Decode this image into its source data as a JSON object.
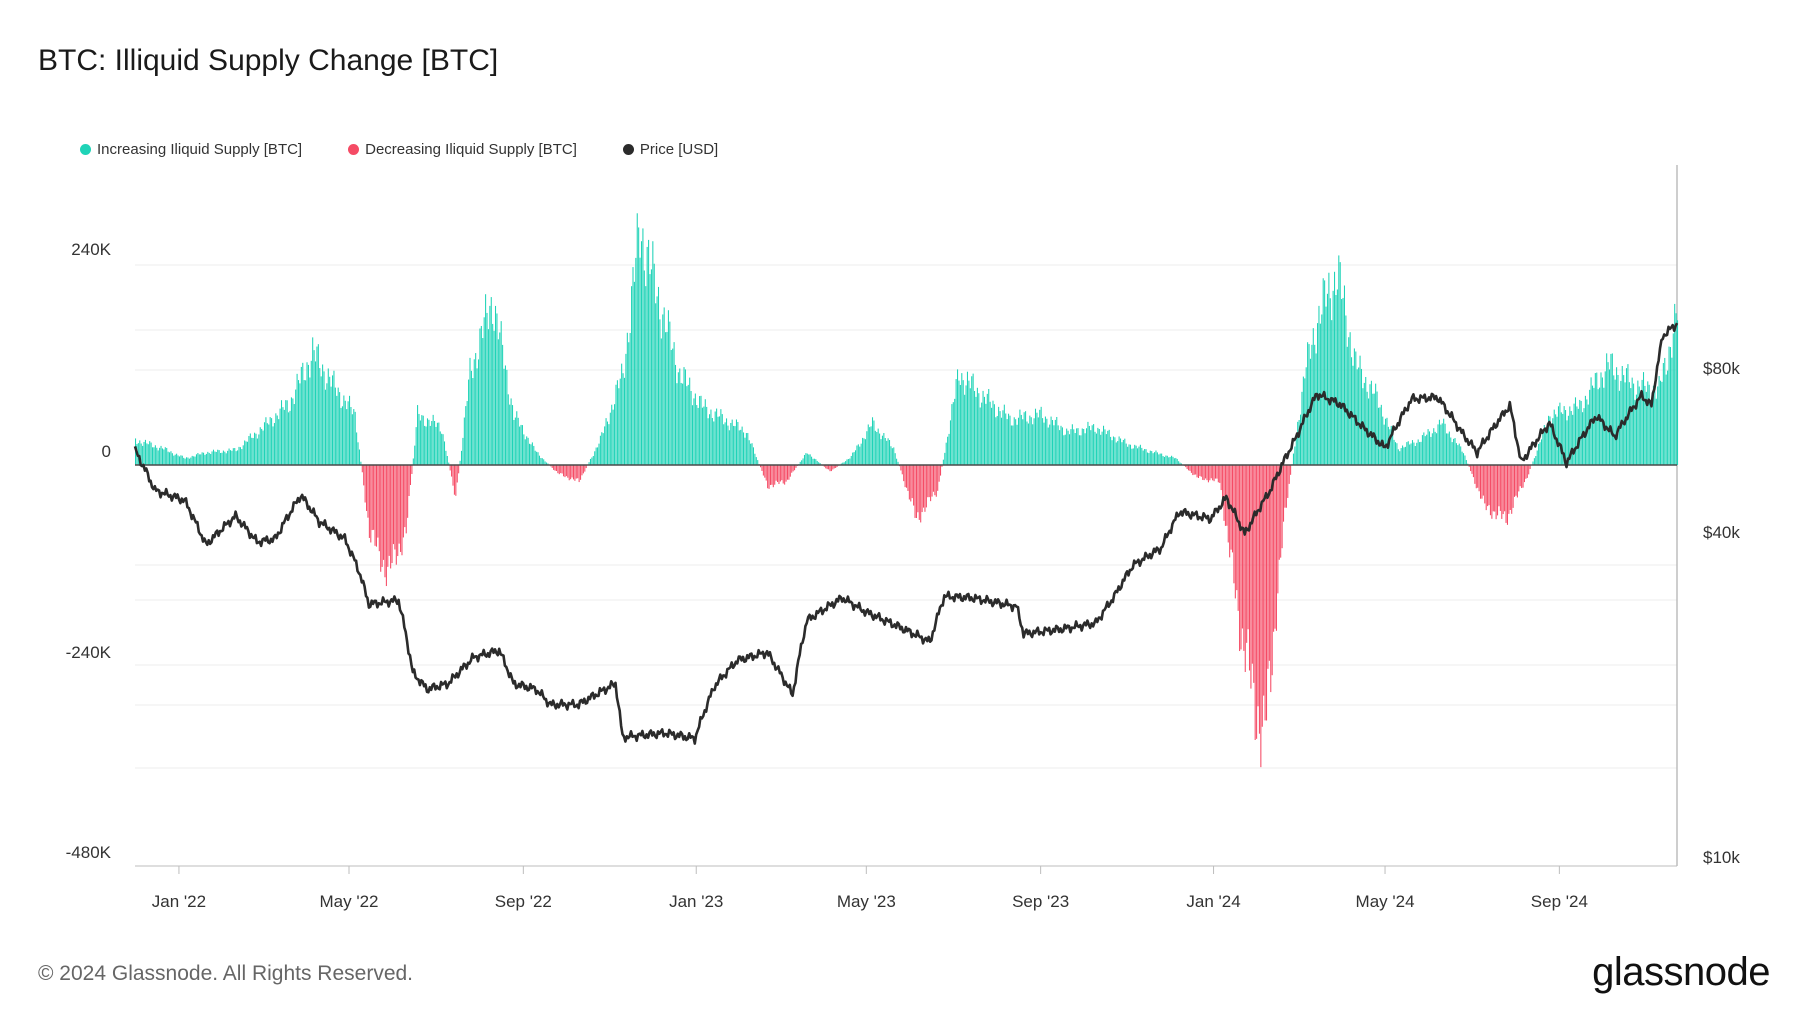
{
  "title": "BTC: Illiquid Supply Change [BTC]",
  "footer": {
    "copyright": "© 2024 Glassnode. All Rights Reserved.",
    "brand": "glassnode"
  },
  "colors": {
    "increase": "#1fd3b7",
    "decrease": "#f54b65",
    "price": "#2b2b2b",
    "grid": "#ececec",
    "axis": "#bdbdbd"
  },
  "legend": [
    {
      "label": "Increasing Iliquid Supply [BTC]",
      "color": "#1fd3b7"
    },
    {
      "label": "Decreasing Iliquid Supply [BTC]",
      "color": "#f54b65"
    },
    {
      "label": "Price [USD]",
      "color": "#2b2b2b"
    }
  ],
  "chart_data": {
    "type": "bar",
    "y_ticks": [
      "240K",
      "0",
      "-240K",
      "-480K"
    ],
    "y_right_ticks": [
      "$80k",
      "$40k",
      "$10k"
    ],
    "x_ticks": [
      "Jan '22",
      "May '22",
      "Sep '22",
      "Jan '23",
      "May '23",
      "Sep '23",
      "Jan '24",
      "May '24",
      "Sep '24"
    ],
    "ylim": [
      -480000,
      330000
    ],
    "y_right_scale": "log",
    "y_right_range": [
      10000,
      140000
    ],
    "xlim": [
      "2021-12-01",
      "2024-11-23"
    ],
    "series": [
      {
        "name": "Illiquid Supply Change [BTC]",
        "type": "bar",
        "points": [
          [
            "2021-12-01",
            30000
          ],
          [
            "2021-12-20",
            20000
          ],
          [
            "2022-01-05",
            8000
          ],
          [
            "2022-01-20",
            15000
          ],
          [
            "2022-02-10",
            18000
          ],
          [
            "2022-03-01",
            45000
          ],
          [
            "2022-03-20",
            75000
          ],
          [
            "2022-04-05",
            135000
          ],
          [
            "2022-04-20",
            95000
          ],
          [
            "2022-05-05",
            60000
          ],
          [
            "2022-05-15",
            -80000
          ],
          [
            "2022-05-28",
            -130000
          ],
          [
            "2022-06-10",
            -80000
          ],
          [
            "2022-06-18",
            60000
          ],
          [
            "2022-07-05",
            45000
          ],
          [
            "2022-07-15",
            -40000
          ],
          [
            "2022-07-25",
            110000
          ],
          [
            "2022-08-10",
            200000
          ],
          [
            "2022-08-25",
            60000
          ],
          [
            "2022-09-10",
            15000
          ],
          [
            "2022-09-25",
            -10000
          ],
          [
            "2022-10-10",
            -20000
          ],
          [
            "2022-10-25",
            30000
          ],
          [
            "2022-11-10",
            110000
          ],
          [
            "2022-11-22",
            285000
          ],
          [
            "2022-12-05",
            200000
          ],
          [
            "2022-12-20",
            110000
          ],
          [
            "2023-01-05",
            70000
          ],
          [
            "2023-01-20",
            55000
          ],
          [
            "2023-02-05",
            40000
          ],
          [
            "2023-02-20",
            -25000
          ],
          [
            "2023-03-05",
            -20000
          ],
          [
            "2023-03-20",
            15000
          ],
          [
            "2023-04-05",
            -8000
          ],
          [
            "2023-04-20",
            10000
          ],
          [
            "2023-05-05",
            50000
          ],
          [
            "2023-05-20",
            20000
          ],
          [
            "2023-06-05",
            -65000
          ],
          [
            "2023-06-20",
            -30000
          ],
          [
            "2023-07-05",
            110000
          ],
          [
            "2023-07-20",
            85000
          ],
          [
            "2023-08-10",
            55000
          ],
          [
            "2023-09-01",
            60000
          ],
          [
            "2023-09-20",
            40000
          ],
          [
            "2023-10-10",
            45000
          ],
          [
            "2023-11-01",
            25000
          ],
          [
            "2023-11-20",
            15000
          ],
          [
            "2023-12-05",
            8000
          ],
          [
            "2023-12-20",
            -15000
          ],
          [
            "2024-01-05",
            -20000
          ],
          [
            "2024-01-20",
            -200000
          ],
          [
            "2024-02-05",
            -335000
          ],
          [
            "2024-02-20",
            -60000
          ],
          [
            "2024-03-05",
            110000
          ],
          [
            "2024-03-15",
            180000
          ],
          [
            "2024-03-28",
            230000
          ],
          [
            "2024-04-10",
            120000
          ],
          [
            "2024-04-25",
            80000
          ],
          [
            "2024-05-10",
            20000
          ],
          [
            "2024-05-25",
            30000
          ],
          [
            "2024-06-10",
            50000
          ],
          [
            "2024-06-25",
            15000
          ],
          [
            "2024-07-10",
            -50000
          ],
          [
            "2024-07-25",
            -65000
          ],
          [
            "2024-08-10",
            -10000
          ],
          [
            "2024-08-25",
            60000
          ],
          [
            "2024-09-15",
            70000
          ],
          [
            "2024-10-05",
            120000
          ],
          [
            "2024-10-25",
            95000
          ],
          [
            "2024-11-10",
            90000
          ],
          [
            "2024-11-23",
            180000
          ]
        ]
      },
      {
        "name": "Price [USD]",
        "type": "line",
        "axis": "right",
        "points": [
          [
            "2021-12-01",
            57000
          ],
          [
            "2021-12-15",
            48000
          ],
          [
            "2022-01-05",
            46000
          ],
          [
            "2022-01-20",
            38000
          ],
          [
            "2022-02-10",
            43000
          ],
          [
            "2022-02-25",
            38500
          ],
          [
            "2022-03-10",
            39000
          ],
          [
            "2022-03-28",
            47000
          ],
          [
            "2022-04-10",
            42000
          ],
          [
            "2022-04-28",
            39000
          ],
          [
            "2022-05-08",
            34000
          ],
          [
            "2022-05-15",
            29500
          ],
          [
            "2022-06-05",
            30000
          ],
          [
            "2022-06-15",
            22000
          ],
          [
            "2022-06-25",
            20500
          ],
          [
            "2022-07-10",
            21000
          ],
          [
            "2022-07-28",
            23500
          ],
          [
            "2022-08-15",
            24200
          ],
          [
            "2022-08-25",
            21000
          ],
          [
            "2022-09-10",
            20500
          ],
          [
            "2022-09-20",
            19200
          ],
          [
            "2022-10-10",
            19200
          ],
          [
            "2022-11-05",
            21000
          ],
          [
            "2022-11-10",
            16700
          ],
          [
            "2022-12-10",
            17000
          ],
          [
            "2022-12-31",
            16600
          ],
          [
            "2023-01-14",
            20800
          ],
          [
            "2023-01-30",
            23200
          ],
          [
            "2023-02-20",
            24000
          ],
          [
            "2023-03-10",
            20000
          ],
          [
            "2023-03-20",
            27500
          ],
          [
            "2023-04-14",
            30300
          ],
          [
            "2023-05-01",
            28500
          ],
          [
            "2023-05-25",
            26700
          ],
          [
            "2023-06-15",
            25100
          ],
          [
            "2023-06-25",
            30500
          ],
          [
            "2023-07-15",
            30300
          ],
          [
            "2023-08-15",
            29200
          ],
          [
            "2023-08-20",
            26000
          ],
          [
            "2023-09-15",
            26500
          ],
          [
            "2023-10-10",
            27200
          ],
          [
            "2023-10-23",
            30500
          ],
          [
            "2023-11-05",
            34800
          ],
          [
            "2023-11-25",
            37500
          ],
          [
            "2023-12-08",
            43800
          ],
          [
            "2023-12-30",
            42500
          ],
          [
            "2024-01-10",
            46500
          ],
          [
            "2024-01-23",
            39800
          ],
          [
            "2024-02-10",
            48000
          ],
          [
            "2024-02-28",
            60000
          ],
          [
            "2024-03-14",
            72500
          ],
          [
            "2024-03-30",
            69500
          ],
          [
            "2024-04-15",
            63000
          ],
          [
            "2024-05-01",
            57500
          ],
          [
            "2024-05-20",
            71000
          ],
          [
            "2024-06-07",
            71500
          ],
          [
            "2024-06-25",
            61000
          ],
          [
            "2024-07-05",
            56500
          ],
          [
            "2024-07-28",
            69000
          ],
          [
            "2024-08-05",
            54000
          ],
          [
            "2024-08-25",
            64000
          ],
          [
            "2024-09-06",
            54000
          ],
          [
            "2024-09-27",
            66000
          ],
          [
            "2024-10-10",
            60500
          ],
          [
            "2024-10-29",
            72000
          ],
          [
            "2024-11-05",
            69000
          ],
          [
            "2024-11-13",
            93000
          ],
          [
            "2024-11-23",
            98000
          ]
        ]
      }
    ]
  }
}
